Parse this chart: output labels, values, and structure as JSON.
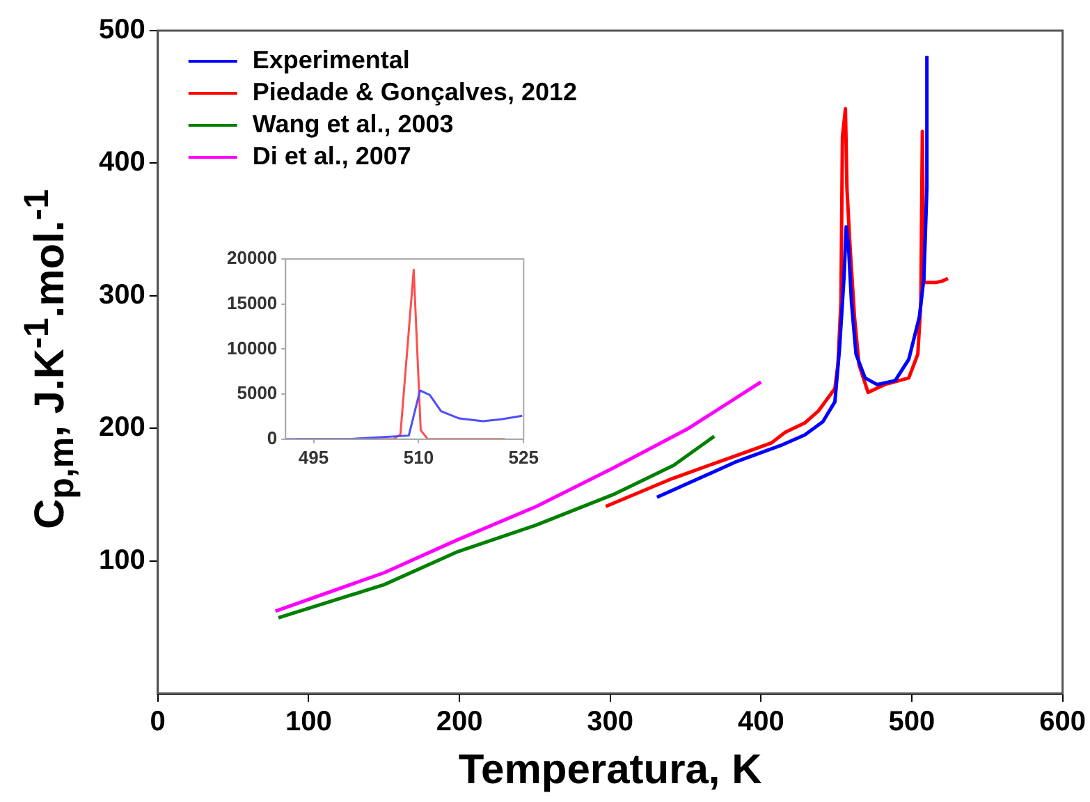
{
  "chart_data": [
    {
      "type": "line",
      "xlabel": "Temperatura, K",
      "ylabel": "C$_{p,m}$, J.K$^{-1}$.mol.$^{-1}$",
      "xlim": [
        0,
        600
      ],
      "xticks": [
        0,
        100,
        200,
        300,
        400,
        500,
        600
      ],
      "ylim": [
        0,
        500
      ],
      "yticks": [
        100,
        200,
        300,
        400,
        500
      ],
      "grid": false,
      "legend": "top left",
      "marker": "none",
      "line_style": "solid",
      "series": [
        {
          "name": "Experimental",
          "color": "#0000ff",
          "x": [
            331,
            384,
            413,
            429,
            441,
            449,
            452,
            455,
            456.5,
            458,
            460,
            463,
            469,
            477,
            489,
            498,
            505,
            508,
            510,
            510
          ],
          "values": [
            148,
            175,
            187,
            195,
            205,
            220,
            259,
            313,
            352,
            338,
            295,
            256,
            238,
            233,
            236,
            252,
            284,
            313,
            381,
            481
          ]
        },
        {
          "name": "Piedade & Gonçalves, 2012",
          "color": "#ff0000",
          "x": [
            297,
            341,
            385,
            407,
            416,
            429,
            438,
            449,
            451,
            453,
            454,
            456,
            457,
            459,
            462,
            465,
            471,
            482,
            498,
            504,
            506,
            507,
            508,
            512,
            516,
            520,
            524
          ],
          "values": [
            141,
            162,
            180,
            189,
            197,
            204,
            213,
            230,
            248,
            295,
            420,
            441,
            381,
            338,
            284,
            248,
            227,
            233,
            238,
            256,
            295,
            424,
            310,
            310,
            310,
            311,
            313
          ]
        },
        {
          "name": "Wang et al., 2003",
          "color": "#008000",
          "x": [
            80,
            150,
            199,
            251,
            302,
            342,
            369
          ],
          "values": [
            57,
            82,
            107,
            127,
            150,
            172,
            194
          ]
        },
        {
          "name": "Di et al., 2007",
          "color": "#ff00ff",
          "x": [
            78,
            150,
            199,
            251,
            302,
            352,
            400
          ],
          "values": [
            62,
            91,
            116,
            141,
            170,
            200,
            235
          ]
        }
      ]
    },
    {
      "type": "line",
      "xlim": [
        491,
        525
      ],
      "xticks": [
        495,
        510,
        525
      ],
      "ylim": [
        0,
        20000
      ],
      "yticks": [
        0,
        5000,
        10000,
        15000,
        20000
      ],
      "grid": false,
      "legend": false,
      "marker": "none",
      "series": [
        {
          "color": "#4d4dff",
          "x": [
            491,
            500,
            508.6,
            510.2,
            511.6,
            513.2,
            515.8,
            519.2,
            521.8,
            524.8
          ],
          "values": [
            0,
            0,
            400,
            5400,
            4900,
            3100,
            2300,
            2000,
            2200,
            2600
          ]
        },
        {
          "color": "#ff4d4d",
          "x": [
            492.6,
            500,
            506.4,
            507.4,
            509.3,
            510.3,
            511.3,
            522.3
          ],
          "values": [
            0,
            0,
            0,
            500,
            18800,
            1000,
            0,
            0
          ]
        }
      ]
    }
  ]
}
